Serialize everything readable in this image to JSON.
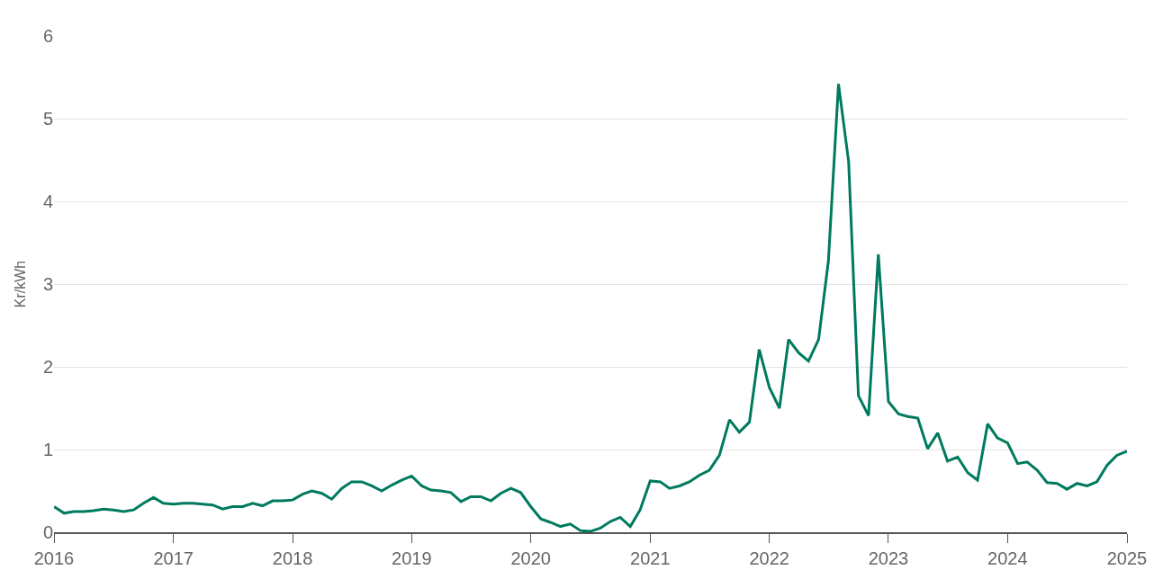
{
  "chart_data": {
    "type": "line",
    "ylabel": "Kr/kWh",
    "x": [
      "2016-01",
      "2016-02",
      "2016-03",
      "2016-04",
      "2016-05",
      "2016-06",
      "2016-07",
      "2016-08",
      "2016-09",
      "2016-10",
      "2016-11",
      "2016-12",
      "2017-01",
      "2017-02",
      "2017-03",
      "2017-04",
      "2017-05",
      "2017-06",
      "2017-07",
      "2017-08",
      "2017-09",
      "2017-10",
      "2017-11",
      "2017-12",
      "2018-01",
      "2018-02",
      "2018-03",
      "2018-04",
      "2018-05",
      "2018-06",
      "2018-07",
      "2018-08",
      "2018-09",
      "2018-10",
      "2018-11",
      "2018-12",
      "2019-01",
      "2019-02",
      "2019-03",
      "2019-04",
      "2019-05",
      "2019-06",
      "2019-07",
      "2019-08",
      "2019-09",
      "2019-10",
      "2019-11",
      "2019-12",
      "2020-01",
      "2020-02",
      "2020-03",
      "2020-04",
      "2020-05",
      "2020-06",
      "2020-07",
      "2020-08",
      "2020-09",
      "2020-10",
      "2020-11",
      "2020-12",
      "2021-01",
      "2021-02",
      "2021-03",
      "2021-04",
      "2021-05",
      "2021-06",
      "2021-07",
      "2021-08",
      "2021-09",
      "2021-10",
      "2021-11",
      "2021-12",
      "2022-01",
      "2022-02",
      "2022-03",
      "2022-04",
      "2022-05",
      "2022-06",
      "2022-07",
      "2022-08",
      "2022-09",
      "2022-10",
      "2022-11",
      "2022-12",
      "2023-01",
      "2023-02",
      "2023-03",
      "2023-04",
      "2023-05",
      "2023-06",
      "2023-07",
      "2023-08",
      "2023-09",
      "2023-10",
      "2023-11",
      "2023-12",
      "2024-01",
      "2024-02",
      "2024-03",
      "2024-04",
      "2024-05",
      "2024-06",
      "2024-07",
      "2024-08",
      "2024-09",
      "2024-10",
      "2024-11",
      "2024-12",
      "2025-01"
    ],
    "series": [
      {
        "color": "#007a5e",
        "values": [
          0.31,
          0.23,
          0.25,
          0.25,
          0.26,
          0.28,
          0.27,
          0.25,
          0.27,
          0.35,
          0.42,
          0.35,
          0.34,
          0.35,
          0.35,
          0.34,
          0.33,
          0.28,
          0.31,
          0.31,
          0.35,
          0.32,
          0.38,
          0.38,
          0.39,
          0.46,
          0.5,
          0.47,
          0.4,
          0.53,
          0.61,
          0.61,
          0.56,
          0.5,
          0.57,
          0.63,
          0.68,
          0.56,
          0.51,
          0.5,
          0.48,
          0.37,
          0.43,
          0.43,
          0.38,
          0.47,
          0.53,
          0.48,
          0.31,
          0.16,
          0.12,
          0.07,
          0.1,
          0.02,
          0.01,
          0.05,
          0.13,
          0.18,
          0.07,
          0.27,
          0.62,
          0.61,
          0.53,
          0.56,
          0.61,
          0.69,
          0.75,
          0.93,
          1.36,
          1.21,
          1.33,
          2.21,
          1.75,
          1.5,
          2.33,
          2.17,
          2.07,
          2.33,
          3.28,
          5.42,
          4.48,
          1.65,
          1.41,
          3.36,
          1.58,
          1.43,
          1.4,
          1.38,
          1.01,
          1.2,
          0.86,
          0.91,
          0.72,
          0.63,
          1.31,
          1.14,
          1.08,
          0.83,
          0.85,
          0.75,
          0.6,
          0.59,
          0.52,
          0.59,
          0.56,
          0.61,
          0.81,
          0.93,
          0.98
        ]
      }
    ],
    "xlim": [
      "2016-01",
      "2025-01"
    ],
    "xticks": [
      {
        "value": "2016-01",
        "label": "2016"
      },
      {
        "value": "2017-01",
        "label": "2017"
      },
      {
        "value": "2018-01",
        "label": "2018"
      },
      {
        "value": "2019-01",
        "label": "2019"
      },
      {
        "value": "2020-01",
        "label": "2020"
      },
      {
        "value": "2021-01",
        "label": "2021"
      },
      {
        "value": "2022-01",
        "label": "2022"
      },
      {
        "value": "2023-01",
        "label": "2023"
      },
      {
        "value": "2024-01",
        "label": "2024"
      },
      {
        "value": "2025-01",
        "label": "2025"
      }
    ],
    "ylim": [
      0,
      6
    ],
    "yticks": [
      0,
      1,
      2,
      3,
      4,
      5,
      6
    ],
    "grid": "y",
    "marker": "none",
    "line_style": "solid"
  }
}
